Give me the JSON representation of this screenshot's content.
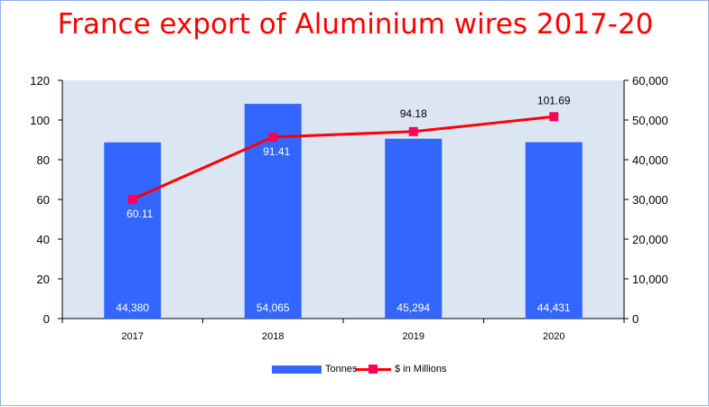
{
  "chart_data": {
    "type": "bar+line",
    "title": "France export of Aluminium wires 2017-20",
    "categories": [
      "2017",
      "2018",
      "2019",
      "2020"
    ],
    "series": [
      {
        "name": "Tonnes",
        "type": "bar",
        "axis": "right",
        "values": [
          44380,
          54065,
          45294,
          44431
        ],
        "labels": [
          "44,380",
          "54,065",
          "45,294",
          "44,431"
        ],
        "color": "#3366ff"
      },
      {
        "name": "$ in Millions",
        "type": "line",
        "axis": "left",
        "values": [
          60.11,
          91.41,
          94.18,
          101.69
        ],
        "labels": [
          "60.11",
          "91.41",
          "94.18",
          "101.69"
        ],
        "color": "#ff0000",
        "marker_color": "#ff0055"
      }
    ],
    "y_left": {
      "min": 0,
      "max": 120,
      "ticks": [
        "0",
        "20",
        "40",
        "60",
        "80",
        "100",
        "120"
      ]
    },
    "y_right": {
      "min": 0,
      "max": 60000,
      "ticks": [
        "0",
        "10,000",
        "20,000",
        "30,000",
        "40,000",
        "50,000",
        "60,000"
      ]
    },
    "plot_background": "#dce6f2",
    "legend_position": "bottom"
  }
}
